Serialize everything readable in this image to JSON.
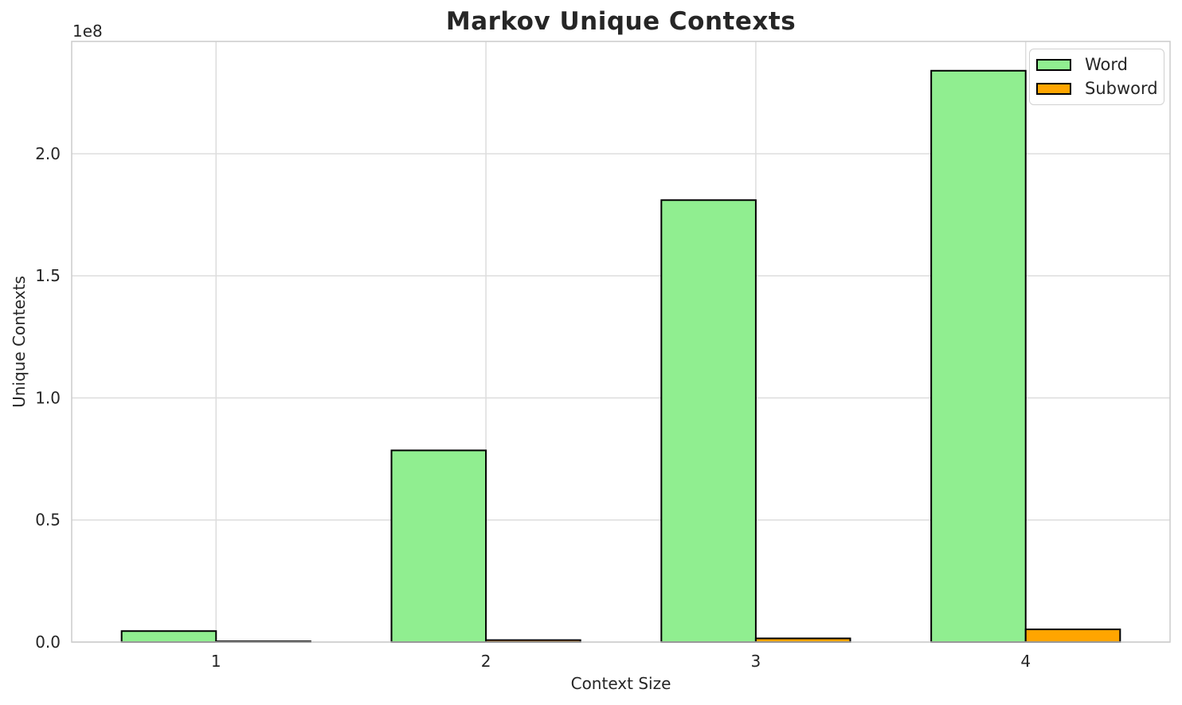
{
  "chart_data": {
    "type": "bar",
    "title": "Markov Unique Contexts",
    "xlabel": "Context Size",
    "ylabel": "Unique Contexts",
    "offset_text": "1e8",
    "categories": [
      "1",
      "2",
      "3",
      "4"
    ],
    "series": [
      {
        "name": "Word",
        "color": "#90EE90",
        "values": [
          4500000,
          78500000,
          181000000,
          234000000
        ]
      },
      {
        "name": "Subword",
        "color": "#FFA500",
        "values": [
          300000,
          800000,
          1500000,
          5200000
        ]
      }
    ],
    "bar_edge_color": "#000000",
    "ylim": [
      0,
      246000000
    ],
    "yticks": {
      "values": [
        0,
        50000000,
        100000000,
        150000000,
        200000000
      ],
      "labels": [
        "0.0",
        "0.5",
        "1.0",
        "1.5",
        "2.0"
      ]
    },
    "grid": true,
    "legend": {
      "position": "upper right",
      "entries": [
        "Word",
        "Subword"
      ]
    }
  },
  "style": {
    "grid_color": "#dddddd",
    "spine_color": "#cccccc",
    "text_color": "#262626",
    "background": "#ffffff"
  }
}
